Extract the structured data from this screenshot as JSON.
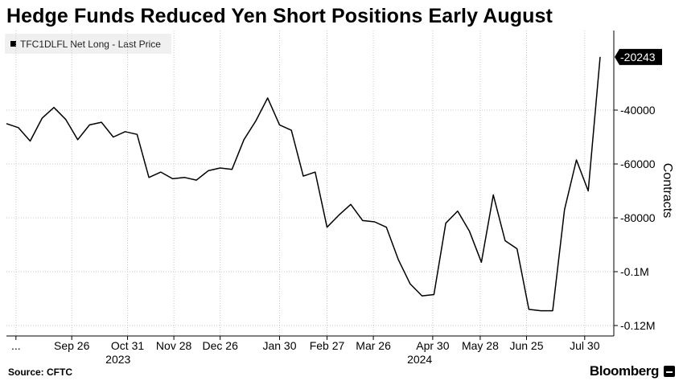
{
  "header": {
    "title": "Hedge Funds Reduced Yen Short Positions Early August"
  },
  "legend": {
    "label": "TFC1DLFL Net Long - Last Price"
  },
  "footer": {
    "source": "Source: CFTC",
    "brand": "Bloomberg"
  },
  "last_value_label": "-20243",
  "colors": {
    "line": "#000000",
    "grid": "#c8c8c8",
    "legend_bg": "#f0f0f0"
  },
  "chart_data": {
    "type": "line",
    "title": "Hedge Funds Reduced Yen Short Positions Early August",
    "ylabel": "Contracts",
    "ylim": [
      -122000,
      -8000
    ],
    "y_ticks": [
      {
        "value": -40000,
        "label": "-40000"
      },
      {
        "value": -60000,
        "label": "-60000"
      },
      {
        "value": -80000,
        "label": "-80000"
      },
      {
        "value": -100000,
        "label": "-0.1M"
      },
      {
        "value": -120000,
        "label": "-0.12M"
      }
    ],
    "x_ticks": [
      {
        "week": 0.8,
        "label": "..."
      },
      {
        "week": 5.5,
        "label": "Sep 26"
      },
      {
        "week": 10.2,
        "label": "Oct 31"
      },
      {
        "week": 14.1,
        "label": "Nov 28"
      },
      {
        "week": 18,
        "label": "Dec 26"
      },
      {
        "week": 23,
        "label": "Jan 30"
      },
      {
        "week": 27,
        "label": "Feb 27"
      },
      {
        "week": 30.9,
        "label": "Mar 26"
      },
      {
        "week": 35.9,
        "label": "Apr 30"
      },
      {
        "week": 39.9,
        "label": "May 28"
      },
      {
        "week": 43.8,
        "label": "Jun 25"
      },
      {
        "week": 48.7,
        "label": "Jul 30"
      }
    ],
    "year_labels": [
      {
        "week": 9.4,
        "label": "2023"
      },
      {
        "week": 34.8,
        "label": "2024"
      }
    ],
    "grid": true,
    "series": [
      {
        "name": "TFC1DLFL Net Long - Last Price",
        "values": [
          -45000,
          -46500,
          -51500,
          -43000,
          -39000,
          -43500,
          -51000,
          -45500,
          -44500,
          -50000,
          -48000,
          -49000,
          -65000,
          -63000,
          -65500,
          -65000,
          -66000,
          -62500,
          -61500,
          -62000,
          -51000,
          -44000,
          -35500,
          -45500,
          -47500,
          -64500,
          -63000,
          -83500,
          -79000,
          -75000,
          -81000,
          -81500,
          -83500,
          -95500,
          -104500,
          -109000,
          -108500,
          -82000,
          -77500,
          -85000,
          -96500,
          -71500,
          -88500,
          -91500,
          -114000,
          -114500,
          -114500,
          -77000,
          -58500,
          -70000,
          -20243
        ]
      }
    ]
  }
}
